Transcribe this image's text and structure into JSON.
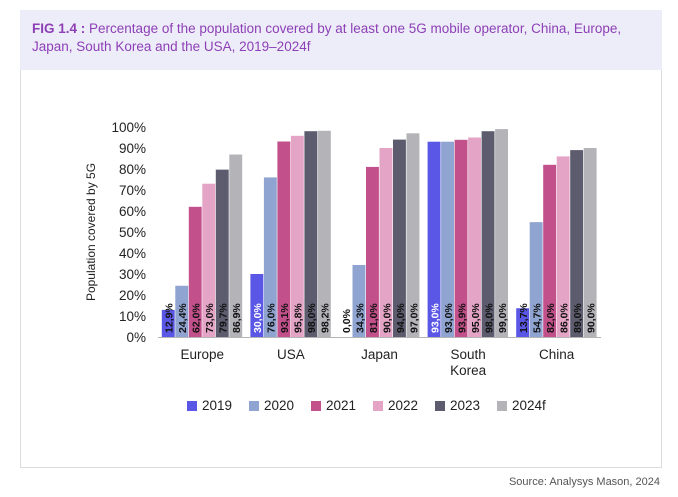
{
  "figure": {
    "label": "FIG 1.4 :",
    "title": "Percentage of the population covered by at least one 5G mobile operator, China, Europe, Japan, South Korea and the USA, 2019–2024f"
  },
  "source": "Source: Analysys Mason, 2024",
  "chart_data": {
    "type": "bar",
    "ylabel": "Population covered by 5G",
    "ylim": [
      0,
      100
    ],
    "yticks": [
      "0%",
      "10%",
      "20%",
      "30%",
      "40%",
      "50%",
      "60%",
      "70%",
      "80%",
      "90%",
      "100%"
    ],
    "categories": [
      "Europe",
      "USA",
      "Japan",
      "South Korea",
      "China"
    ],
    "category_lines": [
      [
        "Europe"
      ],
      [
        "USA"
      ],
      [
        "Japan"
      ],
      [
        "South",
        "Korea"
      ],
      [
        "China"
      ]
    ],
    "legend_position": "bottom",
    "grid": false,
    "series": [
      {
        "name": "2019",
        "color": "#5b57e6",
        "values": [
          12.9,
          30.0,
          0.0,
          93.0,
          13.7
        ],
        "labels": [
          "12,9%",
          "30,0%",
          "0,0%",
          "93,0%",
          "13,7%"
        ]
      },
      {
        "name": "2020",
        "color": "#8fa4d0",
        "values": [
          24.4,
          76.0,
          34.3,
          93.0,
          54.7
        ],
        "labels": [
          "24,4%",
          "76,0%",
          "34,3%",
          "93,0%",
          "54,7%"
        ]
      },
      {
        "name": "2021",
        "color": "#c2508a",
        "values": [
          62.0,
          93.1,
          81.0,
          93.9,
          82.0
        ],
        "labels": [
          "62,0%",
          "93,1%",
          "81,0%",
          "93,9%",
          "82,0%"
        ]
      },
      {
        "name": "2022",
        "color": "#e4a4c6",
        "values": [
          73.0,
          95.8,
          90.0,
          95.0,
          86.0
        ],
        "labels": [
          "73,0%",
          "95,8%",
          "90,0%",
          "95,0%",
          "86,0%"
        ]
      },
      {
        "name": "2023",
        "color": "#5c5c6e",
        "values": [
          79.7,
          98.0,
          94.0,
          98.0,
          89.0
        ],
        "labels": [
          "79,7%",
          "98,0%",
          "94,0%",
          "98,0%",
          "89,0%"
        ]
      },
      {
        "name": "2024f",
        "color": "#b3b3b8",
        "values": [
          86.9,
          98.2,
          97.0,
          99.0,
          90.0
        ],
        "labels": [
          "86,9%",
          "98,2%",
          "97,0%",
          "99,0%",
          "90,0%"
        ]
      }
    ]
  }
}
